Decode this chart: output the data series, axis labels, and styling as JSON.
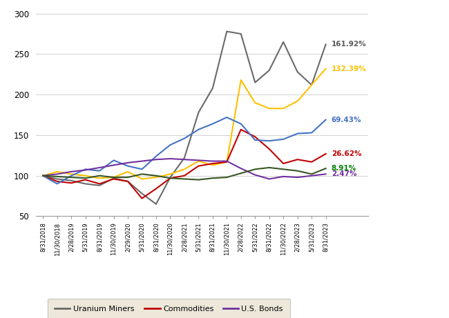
{
  "x_labels": [
    "8/31/2018",
    "11/30/2018",
    "2/28/2019",
    "5/31/2019",
    "8/31/2019",
    "11/30/2019",
    "2/29/2020",
    "5/31/2020",
    "8/31/2020",
    "11/30/2020",
    "2/28/2021",
    "5/31/2021",
    "8/31/2021",
    "11/30/2021",
    "2/28/2022",
    "5/31/2022",
    "8/31/2022",
    "11/30/2022",
    "2/28/2023",
    "5/31/2023",
    "8/31/2023"
  ],
  "uranium_miners": [
    100,
    96,
    94,
    90,
    88,
    97,
    93,
    78,
    65,
    98,
    122,
    178,
    208,
    278,
    275,
    215,
    230,
    265,
    228,
    212,
    262
  ],
  "u3o8_spot": [
    100,
    105,
    102,
    100,
    97,
    98,
    105,
    96,
    98,
    102,
    108,
    118,
    113,
    117,
    218,
    190,
    183,
    183,
    192,
    212,
    232
  ],
  "commodities": [
    100,
    93,
    91,
    95,
    90,
    96,
    93,
    72,
    84,
    97,
    100,
    112,
    115,
    117,
    157,
    148,
    133,
    115,
    120,
    117,
    127
  ],
  "us_equities": [
    100,
    90,
    100,
    108,
    106,
    119,
    112,
    108,
    124,
    138,
    146,
    157,
    164,
    172,
    164,
    144,
    143,
    145,
    152,
    153,
    169
  ],
  "us_bonds": [
    100,
    102,
    105,
    107,
    110,
    113,
    116,
    118,
    120,
    121,
    120,
    119,
    118,
    118,
    109,
    101,
    96,
    99,
    98,
    100,
    102
  ],
  "us_dollar": [
    100,
    99,
    98,
    97,
    100,
    98,
    98,
    102,
    100,
    97,
    96,
    95,
    97,
    98,
    103,
    108,
    110,
    108,
    106,
    102,
    109
  ],
  "end_labels": {
    "uranium_miners": "161.92%",
    "u3o8_spot": "132.39%",
    "commodities": "26.62%",
    "us_equities": "69.43%",
    "us_bonds": "2.47%",
    "us_dollar": "8.91%"
  },
  "colors": {
    "uranium_miners": "#696969",
    "u3o8_spot": "#FFC000",
    "commodities": "#C00000",
    "us_equities": "#4472C4",
    "us_bonds": "#7030A0",
    "us_dollar": "#375623"
  },
  "label_colors": {
    "uranium_miners": "#595959",
    "u3o8_spot": "#FFC000",
    "commodities": "#C00000",
    "us_equities": "#4472C4",
    "us_bonds": "#7030A0",
    "us_dollar": "#008000"
  },
  "ylim": [
    50,
    305
  ],
  "yticks": [
    50,
    100,
    150,
    200,
    250,
    300
  ],
  "background_color": "#FFFFFF",
  "legend_background": "#EDE8DA",
  "legend_edge": "#CCCCCC"
}
